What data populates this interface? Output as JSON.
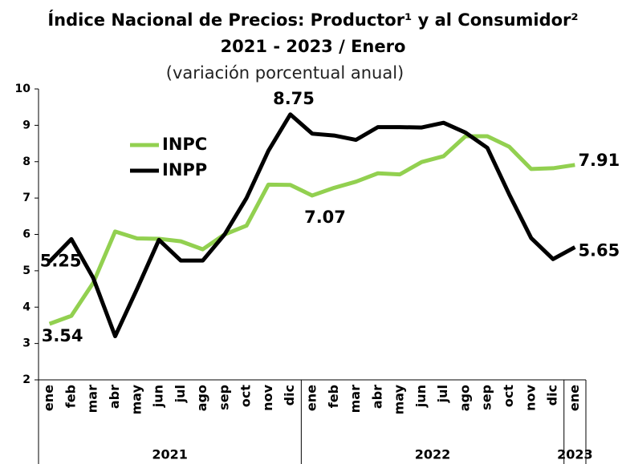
{
  "chart_data": {
    "type": "line",
    "title": "Índice Nacional de Precios: Productor¹ y al Consumidor²",
    "title_line2": "2021 - 2023 / Enero",
    "subtitle": "(variación porcentual anual)",
    "categories": [
      "ene",
      "feb",
      "mar",
      "abr",
      "may",
      "jun",
      "jul",
      "ago",
      "sep",
      "oct",
      "nov",
      "dic",
      "ene",
      "feb",
      "mar",
      "abr",
      "may",
      "jun",
      "jul",
      "ago",
      "sep",
      "oct",
      "nov",
      "dic",
      "ene"
    ],
    "years": [
      "2021",
      "2022",
      "2023"
    ],
    "ylim": [
      2,
      10
    ],
    "yticks": [
      2,
      3,
      4,
      5,
      6,
      7,
      8,
      9,
      10
    ],
    "legend": "upper left",
    "annotations": [
      "8.75"
    ],
    "series": [
      {
        "name": "INPC",
        "color": "#92d050",
        "label_color": "#6b9a3a",
        "values": [
          3.54,
          3.76,
          4.67,
          6.08,
          5.89,
          5.88,
          5.81,
          5.59,
          6.0,
          6.24,
          7.37,
          7.36,
          7.07,
          7.28,
          7.45,
          7.68,
          7.65,
          7.99,
          8.15,
          8.7,
          8.7,
          8.41,
          7.8,
          7.82,
          7.91
        ],
        "value_labels": [
          "3.54",
          null,
          null,
          null,
          null,
          null,
          null,
          null,
          null,
          null,
          null,
          null,
          "7.07",
          null,
          null,
          null,
          null,
          null,
          null,
          null,
          null,
          null,
          null,
          null,
          "7.91"
        ]
      },
      {
        "name": "INPP",
        "color": "#000000",
        "label_color": "#000000",
        "values": [
          5.25,
          5.87,
          4.8,
          3.2,
          4.5,
          5.85,
          5.28,
          5.28,
          6.0,
          7.0,
          8.3,
          9.3,
          8.77,
          8.72,
          8.6,
          8.95,
          8.95,
          8.94,
          9.07,
          8.8,
          8.38,
          7.1,
          5.9,
          5.32,
          5.65
        ],
        "value_labels": [
          "5.25",
          null,
          null,
          null,
          null,
          null,
          null,
          null,
          null,
          null,
          null,
          null,
          null,
          null,
          null,
          null,
          null,
          null,
          null,
          null,
          null,
          null,
          null,
          null,
          "5.65"
        ]
      }
    ]
  }
}
